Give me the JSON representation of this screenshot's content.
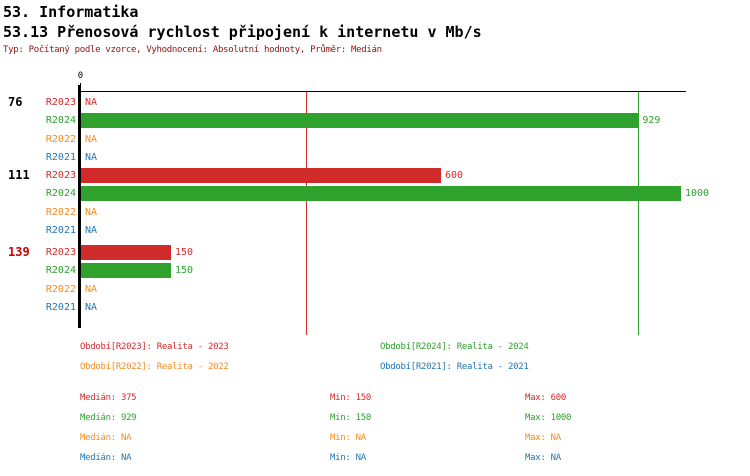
{
  "header": {
    "title": "53. Informatika",
    "subtitle": "53.13 Přenosová rychlost připojení k internetu v Mb/s",
    "meta": "Typ: Počítaný podle vzorce, Vyhodnocení: Absolutní hodnoty, Průměr: Medián"
  },
  "colors": {
    "meta_text": "#8b1510",
    "axis": "#000000",
    "series": {
      "R2023": "#d22b2b",
      "R2024": "#2fa12d",
      "R2022": "#f68b1f",
      "R2021": "#2277b4"
    }
  },
  "chart_data": {
    "type": "bar",
    "orientation": "horizontal",
    "title": "53.13 Přenosová rychlost připojení k internetu v Mb/s",
    "xlabel": "",
    "ylabel": "",
    "axis": {
      "min": 0,
      "max": 1000,
      "zero_label": "0"
    },
    "grid": false,
    "series_order": [
      "R2023",
      "R2024",
      "R2022",
      "R2021"
    ],
    "groups": [
      {
        "label": "76",
        "label_color": "#000000",
        "rows": [
          {
            "series": "R2023",
            "value": null,
            "display": "NA"
          },
          {
            "series": "R2024",
            "value": 929,
            "display": "929"
          },
          {
            "series": "R2022",
            "value": null,
            "display": "NA"
          },
          {
            "series": "R2021",
            "value": null,
            "display": "NA"
          }
        ]
      },
      {
        "label": "111",
        "label_color": "#000000",
        "rows": [
          {
            "series": "R2023",
            "value": 600,
            "display": "600"
          },
          {
            "series": "R2024",
            "value": 1000,
            "display": "1000"
          },
          {
            "series": "R2022",
            "value": null,
            "display": "NA"
          },
          {
            "series": "R2021",
            "value": null,
            "display": "NA"
          }
        ]
      },
      {
        "label": "139",
        "label_color": "#cc0000",
        "rows": [
          {
            "series": "R2023",
            "value": 150,
            "display": "150"
          },
          {
            "series": "R2024",
            "value": 150,
            "display": "150"
          },
          {
            "series": "R2022",
            "value": null,
            "display": "NA"
          },
          {
            "series": "R2021",
            "value": null,
            "display": "NA"
          }
        ]
      }
    ],
    "median_lines": [
      {
        "series": "R2023",
        "value": 375,
        "color": "#d22b2b"
      },
      {
        "series": "R2024",
        "value": 929,
        "color": "#2fa12d"
      }
    ]
  },
  "legend": {
    "items": [
      {
        "label": "Období[R2023]: Realita - 2023",
        "color": "#d22b2b"
      },
      {
        "label": "Období[R2024]: Realita - 2024",
        "color": "#2fa12d"
      },
      {
        "label": "Období[R2022]: Realita - 2022",
        "color": "#f68b1f"
      },
      {
        "label": "Období[R2021]: Realita - 2021",
        "color": "#2277b4"
      }
    ]
  },
  "stats": {
    "rows": [
      {
        "color": "#d22b2b",
        "cells": [
          "Medián: 375",
          "Min: 150",
          "Max: 600"
        ]
      },
      {
        "color": "#2fa12d",
        "cells": [
          "Medián: 929",
          "Min: 150",
          "Max: 1000"
        ]
      },
      {
        "color": "#f68b1f",
        "cells": [
          "Medián: NA",
          "Min: NA",
          "Max: NA"
        ]
      },
      {
        "color": "#2277b4",
        "cells": [
          "Medián: NA",
          "Min: NA",
          "Max: NA"
        ]
      }
    ]
  }
}
